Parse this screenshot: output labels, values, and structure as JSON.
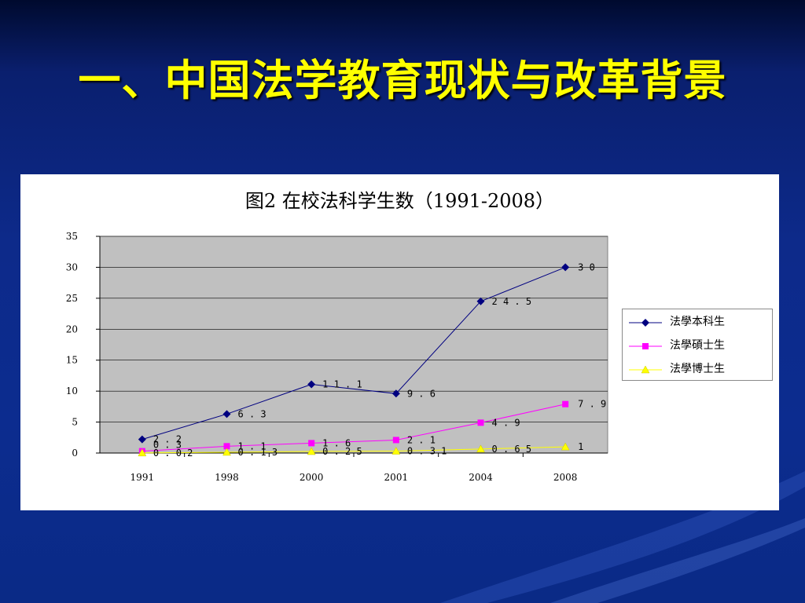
{
  "slide": {
    "title": "一、中国法学教育现状与改革背景"
  },
  "chart_data": {
    "type": "line",
    "title": "图2  在校法科学生数（1991-2008）",
    "categories": [
      "1991",
      "1998",
      "2000",
      "2001",
      "2004",
      "2008"
    ],
    "ylim": [
      0,
      35
    ],
    "yticks": [
      0,
      5,
      10,
      15,
      20,
      25,
      30,
      35
    ],
    "grid": true,
    "legend_position": "right",
    "plot_background": "#c0c0c0",
    "series": [
      {
        "name": "法學本科生",
        "color": "#000080",
        "marker": "diamond",
        "values": [
          2.2,
          6.3,
          11.1,
          9.6,
          24.5,
          30
        ],
        "labels": [
          "2.2",
          "6.3",
          "11.1",
          "9.6",
          "24.5",
          "30"
        ]
      },
      {
        "name": "法學碩士生",
        "color": "#ff00ff",
        "marker": "square",
        "values": [
          0.3,
          1.1,
          1.6,
          2.1,
          4.9,
          7.9
        ],
        "labels": [
          "0.3",
          "1.1",
          "1.6",
          "2.1",
          "4.9",
          "7.9"
        ]
      },
      {
        "name": "法學博士生",
        "color": "#ffff00",
        "marker": "triangle",
        "values": [
          0.02,
          0.13,
          0.25,
          0.31,
          0.65,
          1
        ],
        "labels": [
          "0.02",
          "0.13",
          "0.25",
          "0.31",
          "0.65",
          "1"
        ]
      }
    ]
  }
}
